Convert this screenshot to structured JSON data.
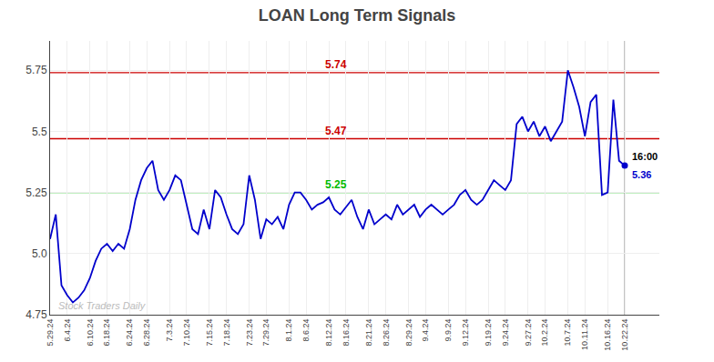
{
  "chart_data": {
    "type": "line",
    "title": "LOAN Long Term Signals",
    "categories": [
      "5.29.24",
      null,
      null,
      "6.4.24",
      null,
      null,
      null,
      "6.10.24",
      null,
      null,
      "6.18.24",
      null,
      null,
      null,
      "6.24.24",
      null,
      null,
      "6.28.24",
      null,
      null,
      null,
      "7.3.24",
      null,
      null,
      "7.10.24",
      null,
      null,
      null,
      "7.15.24",
      null,
      null,
      "7.18.24",
      null,
      null,
      null,
      "7.23.24",
      null,
      null,
      "7.29.24",
      null,
      null,
      null,
      "8.1.24",
      null,
      null,
      "8.6.24",
      null,
      null,
      null,
      "8.12.24",
      null,
      null,
      "8.16.24",
      null,
      null,
      null,
      "8.21.24",
      null,
      null,
      "8.26.24",
      null,
      null,
      null,
      "8.29.24",
      null,
      null,
      "9.4.24",
      null,
      null,
      null,
      "9.9.24",
      null,
      null,
      "9.12.24",
      null,
      null,
      null,
      "9.19.24",
      null,
      null,
      "9.24.24",
      null,
      null,
      null,
      "9.27.24",
      null,
      null,
      "10.2.24",
      null,
      null,
      null,
      "10.7.24",
      null,
      null,
      "10.11.24",
      null,
      null,
      null,
      "10.16.24",
      null,
      null,
      "10.22.24"
    ],
    "values": [
      5.06,
      5.16,
      4.87,
      4.83,
      4.8,
      4.82,
      4.85,
      4.9,
      4.97,
      5.02,
      5.04,
      5.01,
      5.04,
      5.02,
      5.1,
      5.22,
      5.3,
      5.35,
      5.38,
      5.26,
      5.22,
      5.26,
      5.32,
      5.3,
      5.2,
      5.1,
      5.08,
      5.18,
      5.1,
      5.26,
      5.23,
      5.16,
      5.1,
      5.08,
      5.12,
      5.32,
      5.22,
      5.06,
      5.14,
      5.12,
      5.15,
      5.1,
      5.2,
      5.25,
      5.25,
      5.22,
      5.18,
      5.2,
      5.21,
      5.23,
      5.18,
      5.16,
      5.19,
      5.22,
      5.15,
      5.1,
      5.18,
      5.12,
      5.14,
      5.16,
      5.14,
      5.2,
      5.16,
      5.18,
      5.2,
      5.15,
      5.18,
      5.2,
      5.18,
      5.16,
      5.18,
      5.2,
      5.24,
      5.26,
      5.22,
      5.2,
      5.22,
      5.26,
      5.3,
      5.28,
      5.26,
      5.3,
      5.53,
      5.56,
      5.5,
      5.54,
      5.48,
      5.52,
      5.46,
      5.5,
      5.54,
      5.75,
      5.68,
      5.6,
      5.48,
      5.62,
      5.65,
      5.24,
      5.25,
      5.63,
      5.38,
      5.36
    ],
    "color": "#0000cc",
    "ylim": [
      4.75,
      5.87
    ],
    "yticks": [
      4.75,
      {
        "value": 5,
        "label": "5.0"
      },
      5.25,
      5.5,
      5.75
    ],
    "grid": true,
    "hlines": [
      {
        "value": 5.74,
        "label": "5.74",
        "color": "#cc0000"
      },
      {
        "value": 5.47,
        "label": "5.47",
        "color": "#cc0000"
      },
      {
        "value": 5.25,
        "label": "5.25",
        "color": "#00bb00"
      }
    ],
    "last_point": {
      "value": 5.36,
      "label": "16:00",
      "value_label": "5.36"
    },
    "watermark": "Stock Traders Daily"
  }
}
